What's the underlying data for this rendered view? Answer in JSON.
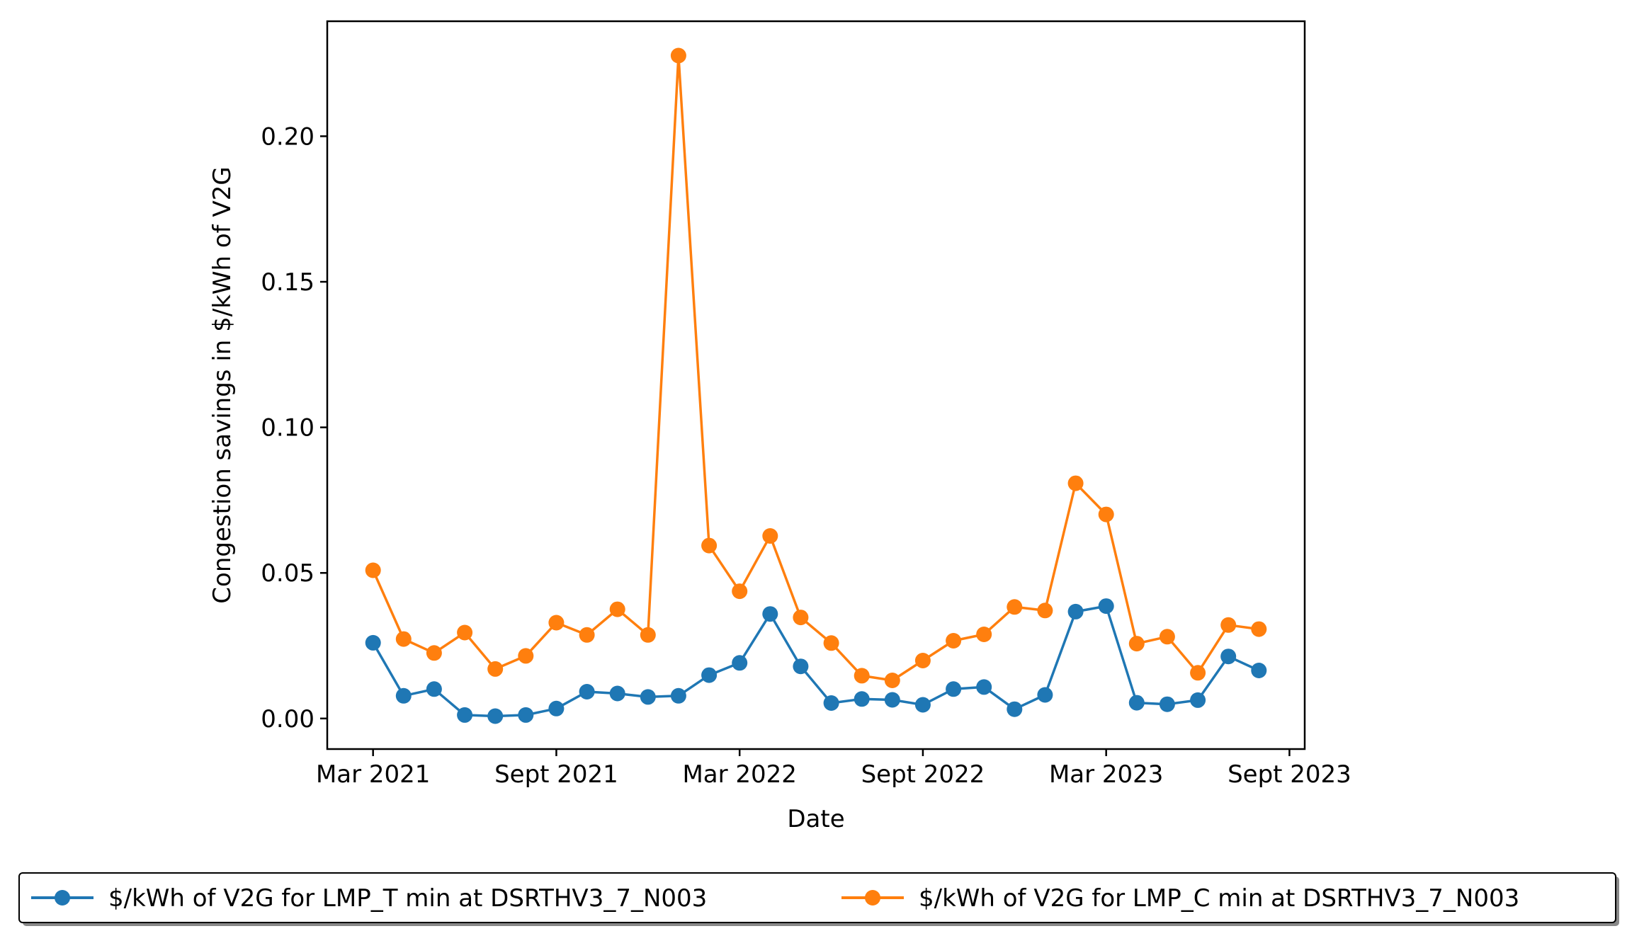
{
  "chart_data": {
    "type": "line",
    "title": "",
    "xlabel": "Date",
    "ylabel": "Congestion savings in $/kWh of V2G",
    "ylim": [
      -0.0105,
      0.2395
    ],
    "yticks": [
      0.0,
      0.05,
      0.1,
      0.15,
      0.2
    ],
    "ytick_labels": [
      "0.00",
      "0.05",
      "0.10",
      "0.15",
      "0.20"
    ],
    "xlim": [
      -1.5,
      30.5
    ],
    "xticks": [
      0,
      6,
      12,
      18,
      24,
      30
    ],
    "xtick_labels": [
      "Mar 2021",
      "Sept 2021",
      "Mar 2022",
      "Sept 2022",
      "Mar 2023",
      "Sept 2023"
    ],
    "x": [
      0,
      1,
      2,
      3,
      4,
      5,
      6,
      7,
      8,
      9,
      10,
      11,
      12,
      13,
      14,
      15,
      16,
      17,
      18,
      19,
      20,
      21,
      22,
      23,
      24,
      25,
      26,
      27,
      28,
      29
    ],
    "series": [
      {
        "name": "$/kWh of V2G for LMP_T min at DSRTHV3_7_N003",
        "color": "#1f77b4",
        "values": [
          0.026,
          0.0078,
          0.0101,
          0.0012,
          0.0008,
          0.0012,
          0.0034,
          0.0092,
          0.0086,
          0.0074,
          0.0078,
          0.0149,
          0.0191,
          0.0359,
          0.0179,
          0.0053,
          0.0067,
          0.0064,
          0.0047,
          0.0101,
          0.0108,
          0.0032,
          0.0081,
          0.0367,
          0.0386,
          0.0054,
          0.0049,
          0.0063,
          0.0213,
          0.0165
        ]
      },
      {
        "name": "$/kWh of V2G for LMP_C min at DSRTHV3_7_N003",
        "color": "#ff7f0e",
        "values": [
          0.0509,
          0.0273,
          0.0225,
          0.0295,
          0.017,
          0.0215,
          0.0329,
          0.0287,
          0.0375,
          0.0287,
          0.2277,
          0.0594,
          0.0437,
          0.0627,
          0.0347,
          0.0259,
          0.0147,
          0.0131,
          0.0199,
          0.0267,
          0.0289,
          0.0383,
          0.0371,
          0.0808,
          0.0701,
          0.0257,
          0.0281,
          0.0157,
          0.0321,
          0.0307
        ]
      }
    ],
    "legend": "bottom-center"
  }
}
